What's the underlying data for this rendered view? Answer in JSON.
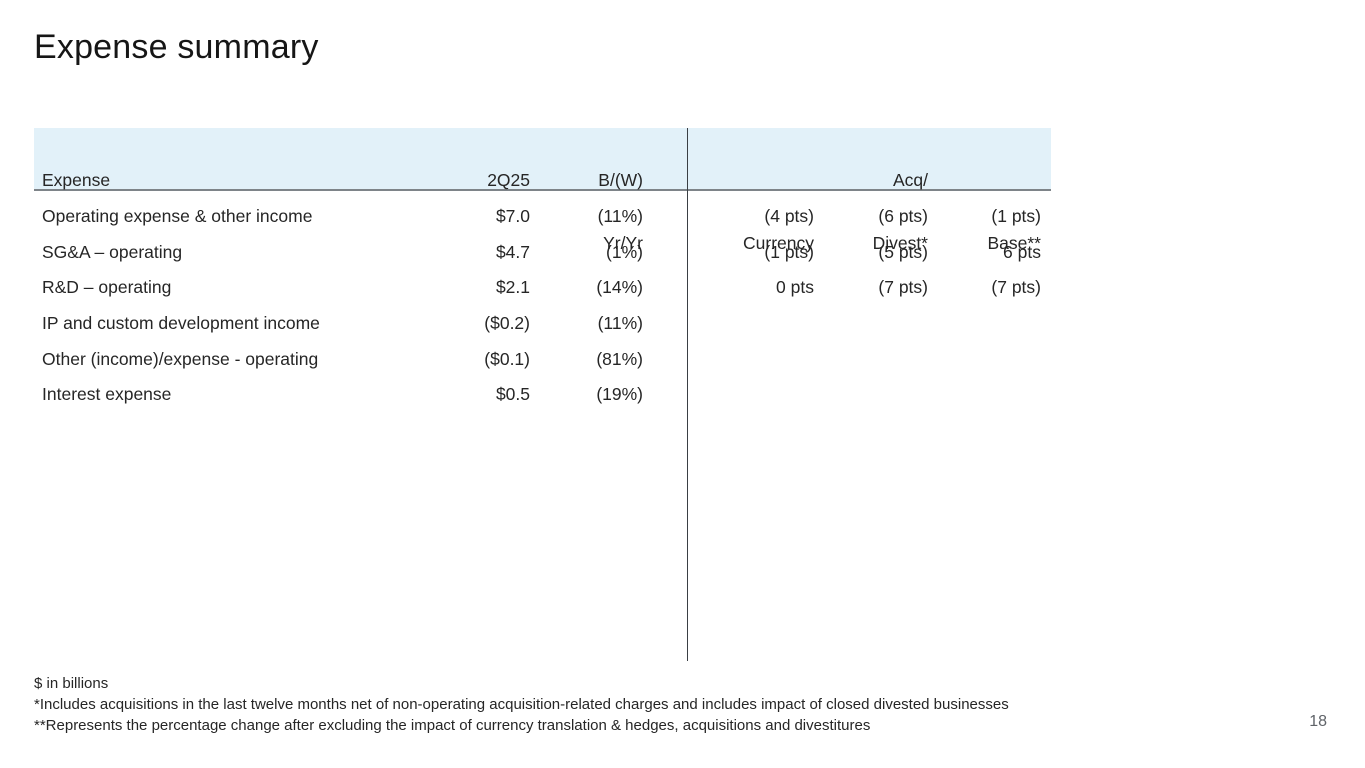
{
  "slide": {
    "title": "Expense summary",
    "page_number": "18"
  },
  "table": {
    "header": {
      "expense_line1": "Expense",
      "expense_line2": "",
      "q_line1": "2Q25",
      "q_line2": "",
      "bw_line1": "B/(W)",
      "bw_line2": "Yr/Yr",
      "currency_line1": "",
      "currency_line2": "Currency",
      "acq_line1": "Acq/",
      "acq_line2": "Divest*",
      "base_line1": "",
      "base_line2": "Base**"
    },
    "rows": [
      {
        "expense": "Operating expense & other income",
        "q": "$7.0",
        "bw": "(11%)",
        "currency": "(4 pts)",
        "acq": "(6 pts)",
        "base": "(1 pts)"
      },
      {
        "expense": "SG&A – operating",
        "q": "$4.7",
        "bw": "(1%)",
        "currency": "(1 pts)",
        "acq": "(5 pts)",
        "base": "6 pts"
      },
      {
        "expense": "R&D – operating",
        "q": "$2.1",
        "bw": "(14%)",
        "currency": "0 pts",
        "acq": "(7 pts)",
        "base": "(7 pts)"
      },
      {
        "expense": "IP and custom development income",
        "q": "($0.2)",
        "bw": "(11%)",
        "currency": "",
        "acq": "",
        "base": ""
      },
      {
        "expense": "Other (income)/expense - operating",
        "q": "($0.1)",
        "bw": "(81%)",
        "currency": "",
        "acq": "",
        "base": ""
      },
      {
        "expense": "Interest expense",
        "q": "$0.5",
        "bw": "(19%)",
        "currency": "",
        "acq": "",
        "base": ""
      }
    ]
  },
  "footnotes": [
    "$ in billions",
    "*Includes acquisitions in the last twelve months net of non-operating acquisition-related charges and includes impact of closed divested businesses",
    "**Represents the percentage change after excluding the impact of currency translation & hedges, acquisitions and divestitures"
  ],
  "colors": {
    "header_bg": "#e2f1f9",
    "header_underline": "#7e8489",
    "divider": "#3a3f44",
    "text": "#262626",
    "page_number_color": "#5f6368"
  }
}
